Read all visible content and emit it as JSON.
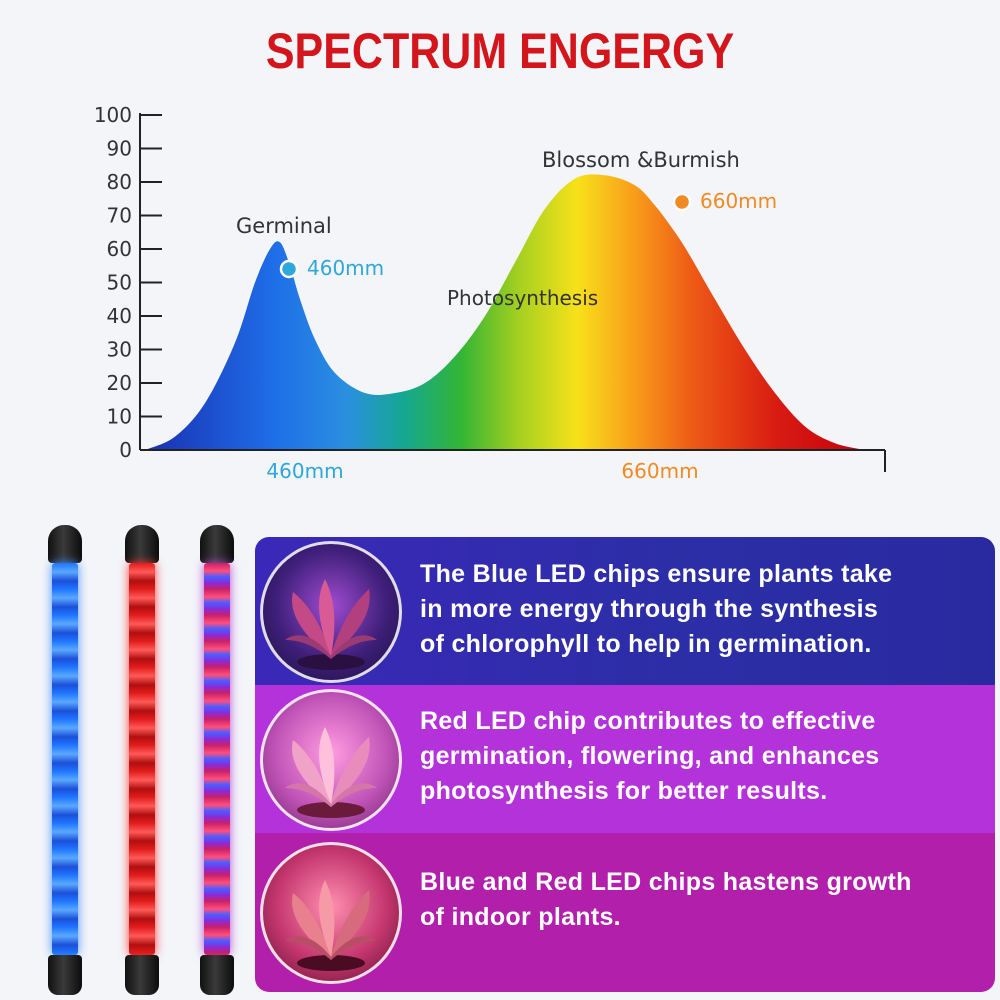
{
  "title": "SPECTRUM ENGERGY",
  "chart_data": {
    "type": "area",
    "title": "SPECTRUM ENGERGY",
    "ylim": [
      0,
      100
    ],
    "y_ticks": [
      "100",
      "90",
      "80",
      "70",
      "60",
      "50",
      "40",
      "30",
      "20",
      "10",
      "0"
    ],
    "x_tick_labels": [
      "460mm",
      "660mm"
    ],
    "curve": {
      "x": [
        0,
        30,
        60,
        90,
        110,
        125,
        135,
        145,
        155,
        170,
        190,
        220,
        250,
        280,
        310,
        340,
        370,
        400,
        430,
        460,
        490,
        510,
        530,
        545,
        570,
        600,
        630,
        660,
        690,
        720
      ],
      "y": [
        0,
        4,
        14,
        32,
        50,
        60,
        62,
        55,
        45,
        33,
        23,
        17,
        17,
        20,
        28,
        40,
        56,
        72,
        81,
        82,
        79,
        73,
        65,
        58,
        45,
        30,
        17,
        7,
        2,
        0
      ]
    },
    "annotations": [
      {
        "text": "Germinal"
      },
      {
        "text": "460mm",
        "color": "#2ea7d9"
      },
      {
        "text": "Photosynthesis"
      },
      {
        "text": "Blossom &Burmish"
      },
      {
        "text": "660mm",
        "color": "#f08a24"
      }
    ],
    "grid": false
  },
  "features": [
    {
      "lines": [
        "The Blue LED chips ensure plants take",
        "in more energy through the synthesis",
        "of chlorophyll to help in germination."
      ],
      "color": "#2b2ea6"
    },
    {
      "lines": [
        "Red LED chip contributes to effective",
        "germination, flowering, and enhances",
        "photosynthesis for better results."
      ],
      "color": "#b432d9"
    },
    {
      "lines": [
        "Blue and Red LED chips hastens growth",
        "of indoor plants."
      ],
      "color": "#b21fab"
    }
  ],
  "icons": {
    "tube_1": "blue-led-tube-icon",
    "tube_2": "red-led-tube-icon",
    "tube_3": "mixed-led-tube-icon",
    "plant": "plant-icon"
  }
}
